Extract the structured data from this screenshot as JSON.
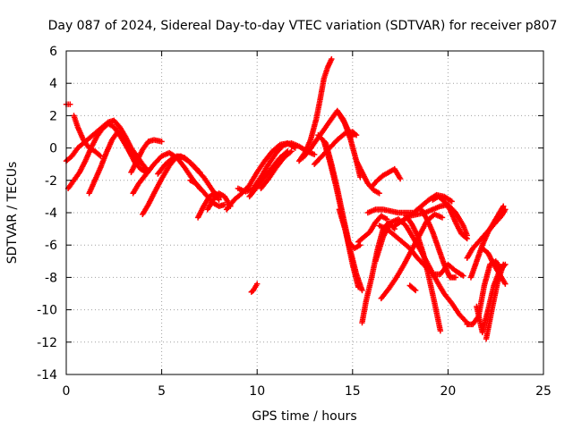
{
  "chart_data": {
    "type": "scatter",
    "title": "Day 087 of 2024, Sidereal Day-to-day VTEC variation (SDTVAR) for receiver p807",
    "xlabel": "GPS time / hours",
    "ylabel": "SDTVAR / TECUs",
    "xlim": [
      0,
      25
    ],
    "ylim": [
      -14,
      6
    ],
    "xticks": [
      "0",
      "5",
      "10",
      "15",
      "20",
      "25"
    ],
    "yticks": [
      "6",
      "4",
      "2",
      "0",
      "-2",
      "-4",
      "-6",
      "-8",
      "-10",
      "-12",
      "-14"
    ],
    "grid": true,
    "marker": "plus",
    "color": "#ff0000",
    "series": [
      {
        "x": [
          0,
          0.2
        ],
        "y": [
          2.7,
          2.7
        ]
      },
      {
        "x": [
          0,
          0.3,
          0.6,
          1.0,
          1.4,
          1.8,
          2.2,
          2.5,
          2.8,
          3.1,
          3.4,
          3.7,
          4.0,
          4.2
        ],
        "y": [
          -0.8,
          -0.5,
          0.0,
          0.4,
          0.8,
          1.2,
          1.6,
          1.7,
          1.3,
          0.7,
          0.0,
          -0.5,
          -1.0,
          -1.3
        ]
      },
      {
        "x": [
          0.1,
          0.4,
          0.7,
          1.0,
          1.3,
          1.6,
          1.9,
          2.2,
          2.5,
          2.8,
          3.1,
          3.4,
          3.7,
          4.0
        ],
        "y": [
          -2.5,
          -2.0,
          -1.5,
          -0.8,
          0.0,
          0.7,
          1.2,
          1.5,
          1.3,
          0.8,
          0.2,
          -0.4,
          -0.8,
          -1.0
        ]
      },
      {
        "x": [
          0.4,
          0.6,
          0.9,
          1.2,
          1.5,
          1.8
        ],
        "y": [
          2.0,
          1.3,
          0.5,
          0.0,
          -0.2,
          -0.5
        ]
      },
      {
        "x": [
          1.2,
          1.5,
          1.8,
          2.1,
          2.4,
          2.7,
          3.0,
          3.3,
          3.6,
          3.9,
          4.2
        ],
        "y": [
          -2.8,
          -2.0,
          -1.2,
          -0.3,
          0.5,
          1.0,
          0.6,
          -0.2,
          -0.9,
          -1.3,
          -1.5
        ]
      },
      {
        "x": [
          3.4,
          3.7,
          4.0,
          4.3,
          4.6,
          5.0
        ],
        "y": [
          -1.5,
          -0.8,
          -0.1,
          0.4,
          0.5,
          0.4
        ]
      },
      {
        "x": [
          3.5,
          3.8,
          4.2,
          4.6,
          5.0,
          5.4,
          5.8,
          6.2,
          6.6,
          7.0
        ],
        "y": [
          -2.8,
          -2.2,
          -1.6,
          -1.0,
          -0.5,
          -0.3,
          -0.6,
          -1.2,
          -1.9,
          -2.5
        ]
      },
      {
        "x": [
          4.0,
          4.3,
          4.6,
          5.0,
          5.4,
          5.8,
          6.2,
          6.6,
          7.0
        ],
        "y": [
          -4.1,
          -3.5,
          -2.8,
          -1.9,
          -1.1,
          -0.5,
          -0.6,
          -1.0,
          -1.5
        ]
      },
      {
        "x": [
          4.8,
          5.2,
          5.6,
          6.0,
          6.4,
          6.8,
          7.2,
          7.6,
          8.0
        ],
        "y": [
          -1.6,
          -1.0,
          -0.6,
          -0.5,
          -0.8,
          -1.3,
          -1.8,
          -2.5,
          -3.2
        ]
      },
      {
        "x": [
          6.5,
          6.8,
          7.1,
          7.4,
          7.7,
          8.0,
          8.3
        ],
        "y": [
          -2.0,
          -2.2,
          -2.6,
          -3.0,
          -3.4,
          -3.6,
          -3.5
        ]
      },
      {
        "x": [
          6.9,
          7.2,
          7.5,
          7.8,
          8.1
        ],
        "y": [
          -4.3,
          -3.6,
          -3.0,
          -2.8,
          -3.0
        ]
      },
      {
        "x": [
          7.4,
          7.7,
          8.0,
          8.3,
          8.6
        ],
        "y": [
          -3.8,
          -3.2,
          -2.8,
          -3.0,
          -3.6
        ]
      },
      {
        "x": [
          8.4,
          8.8,
          9.2,
          9.6,
          10.0,
          10.4,
          10.8,
          11.2,
          11.6,
          12.0
        ],
        "y": [
          -3.8,
          -3.2,
          -2.8,
          -2.3,
          -1.5,
          -0.8,
          -0.2,
          0.2,
          0.3,
          0.0
        ]
      },
      {
        "x": [
          9.0,
          9.4,
          9.8,
          10.2,
          10.6,
          11.0,
          11.4,
          11.8,
          12.2,
          12.6,
          13.0
        ],
        "y": [
          -2.5,
          -2.7,
          -2.5,
          -1.8,
          -1.0,
          -0.3,
          0.2,
          0.3,
          0.1,
          -0.2,
          -0.4
        ]
      },
      {
        "x": [
          9.6,
          10.0,
          10.4,
          10.8,
          11.2,
          11.6
        ],
        "y": [
          -3.0,
          -2.4,
          -1.8,
          -1.2,
          -0.6,
          -0.2
        ]
      },
      {
        "x": [
          10.2,
          10.6,
          11.0,
          11.4,
          11.8
        ],
        "y": [
          -2.5,
          -1.9,
          -1.2,
          -0.6,
          -0.2
        ]
      },
      {
        "x": [
          9.7,
          9.8,
          9.9,
          10.0
        ],
        "y": [
          -8.9,
          -8.8,
          -8.6,
          -8.4
        ]
      },
      {
        "x": [
          12.2,
          12.5,
          12.8,
          13.1,
          13.3,
          13.5,
          13.7,
          13.9
        ],
        "y": [
          -0.8,
          -0.3,
          0.5,
          1.8,
          3.0,
          4.3,
          5.0,
          5.5
        ]
      },
      {
        "x": [
          12.4,
          12.7,
          13.0,
          13.3,
          13.6,
          13.9,
          14.2,
          14.5,
          14.8,
          15.0
        ],
        "y": [
          -0.6,
          -0.2,
          0.3,
          0.8,
          1.3,
          1.8,
          2.3,
          1.8,
          1.0,
          0.7
        ]
      },
      {
        "x": [
          13.0,
          13.4,
          13.8,
          14.2,
          14.6,
          15.0,
          15.2
        ],
        "y": [
          -1.0,
          -0.5,
          0.0,
          0.5,
          0.9,
          1.0,
          0.8
        ]
      },
      {
        "x": [
          13.2,
          13.6,
          13.9,
          14.2,
          14.5,
          14.8,
          15.1,
          15.4
        ],
        "y": [
          0.8,
          0.3,
          -1.0,
          -2.5,
          -4.2,
          -5.8,
          -6.2,
          -6.0
        ]
      },
      {
        "x": [
          13.5,
          13.8,
          14.1,
          14.4,
          14.7,
          15.0,
          15.3
        ],
        "y": [
          0.4,
          -0.8,
          -2.2,
          -3.8,
          -5.5,
          -7.2,
          -8.6
        ]
      },
      {
        "x": [
          14.3,
          14.6,
          14.9,
          15.2,
          15.5
        ],
        "y": [
          -3.8,
          -5.0,
          -6.4,
          -7.8,
          -8.8
        ]
      },
      {
        "x": [
          14.3,
          14.6,
          14.9,
          15.2,
          15.4
        ],
        "y": [
          2.1,
          1.5,
          0.5,
          -0.8,
          -1.8
        ]
      },
      {
        "x": [
          15.2,
          15.5,
          15.8,
          16.1,
          16.4
        ],
        "y": [
          -0.8,
          -1.5,
          -2.2,
          -2.6,
          -2.8
        ]
      },
      {
        "x": [
          15.5,
          15.7,
          16.0,
          16.3,
          16.6,
          16.9,
          17.2
        ],
        "y": [
          -10.8,
          -9.5,
          -8.0,
          -6.3,
          -5.0,
          -4.6,
          -5.0
        ]
      },
      {
        "x": [
          15.3,
          15.6,
          15.9,
          16.2,
          16.5,
          16.8
        ],
        "y": [
          -5.8,
          -5.5,
          -5.2,
          -4.6,
          -4.2,
          -4.4
        ]
      },
      {
        "x": [
          16.0,
          16.3,
          16.6,
          16.9,
          17.2,
          17.5
        ],
        "y": [
          -2.4,
          -2.0,
          -1.7,
          -1.5,
          -1.3,
          -1.9
        ]
      },
      {
        "x": [
          15.8,
          16.2,
          16.6,
          17.0,
          17.4,
          17.8,
          18.2,
          18.6,
          19.0,
          19.4,
          19.8,
          20.2
        ],
        "y": [
          -4.0,
          -3.8,
          -3.8,
          -3.9,
          -4.0,
          -4.0,
          -4.0,
          -3.6,
          -3.2,
          -2.9,
          -3.0,
          -3.3
        ]
      },
      {
        "x": [
          16.2,
          16.6,
          17.0,
          17.4,
          17.8,
          18.2,
          18.6,
          19.0,
          19.4,
          19.8,
          20.2,
          20.6,
          21.0
        ],
        "y": [
          -7.0,
          -5.5,
          -4.6,
          -4.4,
          -4.8,
          -5.6,
          -6.4,
          -7.3,
          -8.2,
          -9.0,
          -9.6,
          -10.3,
          -10.8
        ]
      },
      {
        "x": [
          16.4,
          16.8,
          17.2,
          17.6,
          18.0,
          18.4,
          18.8,
          19.2,
          19.6,
          20.0,
          20.4,
          20.8
        ],
        "y": [
          -4.8,
          -5.0,
          -5.4,
          -5.8,
          -6.2,
          -6.8,
          -7.3,
          -7.8,
          -7.8,
          -7.2,
          -7.6,
          -7.9
        ]
      },
      {
        "x": [
          16.5,
          16.9,
          17.3,
          17.7,
          18.1,
          18.5,
          18.9,
          19.3,
          19.7
        ],
        "y": [
          -9.3,
          -8.7,
          -8.0,
          -7.2,
          -6.3,
          -5.4,
          -4.5,
          -4.1,
          -4.3
        ]
      },
      {
        "x": [
          17.2,
          17.6,
          18.0,
          18.4,
          18.8,
          19.2,
          19.6,
          20.0,
          20.4,
          20.8,
          21.0
        ],
        "y": [
          -4.8,
          -4.5,
          -4.2,
          -4.1,
          -4.0,
          -3.8,
          -3.6,
          -3.5,
          -4.0,
          -4.8,
          -5.4
        ]
      },
      {
        "x": [
          17.8,
          18.1,
          18.4,
          18.7,
          19.0,
          19.3,
          19.6
        ],
        "y": [
          -4.2,
          -4.7,
          -5.4,
          -6.5,
          -8.0,
          -9.6,
          -11.3
        ]
      },
      {
        "x": [
          18.6,
          18.9,
          19.2,
          19.5,
          19.8,
          20.1,
          20.4
        ],
        "y": [
          -3.8,
          -4.4,
          -5.2,
          -6.2,
          -7.2,
          -8.0,
          -8.0
        ]
      },
      {
        "x": [
          19.2,
          19.5,
          19.8,
          20.1,
          20.4,
          20.7,
          21.0
        ],
        "y": [
          -3.2,
          -3.0,
          -3.3,
          -3.8,
          -4.6,
          -5.3,
          -5.6
        ]
      },
      {
        "x": [
          18.0,
          18.3
        ],
        "y": [
          -8.5,
          -8.8
        ]
      },
      {
        "x": [
          21.0,
          21.3,
          21.6,
          21.9,
          22.2,
          22.5,
          22.8
        ],
        "y": [
          -10.9,
          -10.9,
          -10.4,
          -8.5,
          -7.2,
          -7.0,
          -7.5
        ]
      },
      {
        "x": [
          21.0,
          21.3,
          21.6,
          21.9,
          22.2,
          22.5,
          22.8,
          23.0
        ],
        "y": [
          -6.8,
          -6.2,
          -5.8,
          -5.4,
          -5.0,
          -4.6,
          -4.2,
          -3.8
        ]
      },
      {
        "x": [
          21.2,
          21.5,
          21.8,
          22.1,
          22.4,
          22.7,
          22.9
        ],
        "y": [
          -8.0,
          -7.0,
          -6.0,
          -5.2,
          -4.6,
          -4.0,
          -3.6
        ]
      },
      {
        "x": [
          21.5,
          21.8,
          22.1,
          22.4,
          22.7,
          23.0
        ],
        "y": [
          -9.8,
          -11.4,
          -10.0,
          -8.5,
          -7.6,
          -7.2
        ]
      },
      {
        "x": [
          22.0,
          22.3,
          22.6,
          22.9
        ],
        "y": [
          -11.8,
          -10.0,
          -8.3,
          -7.2
        ]
      },
      {
        "x": [
          21.8,
          22.1,
          22.4,
          22.7,
          23.0
        ],
        "y": [
          -6.2,
          -6.5,
          -7.2,
          -7.8,
          -8.4
        ]
      }
    ]
  }
}
